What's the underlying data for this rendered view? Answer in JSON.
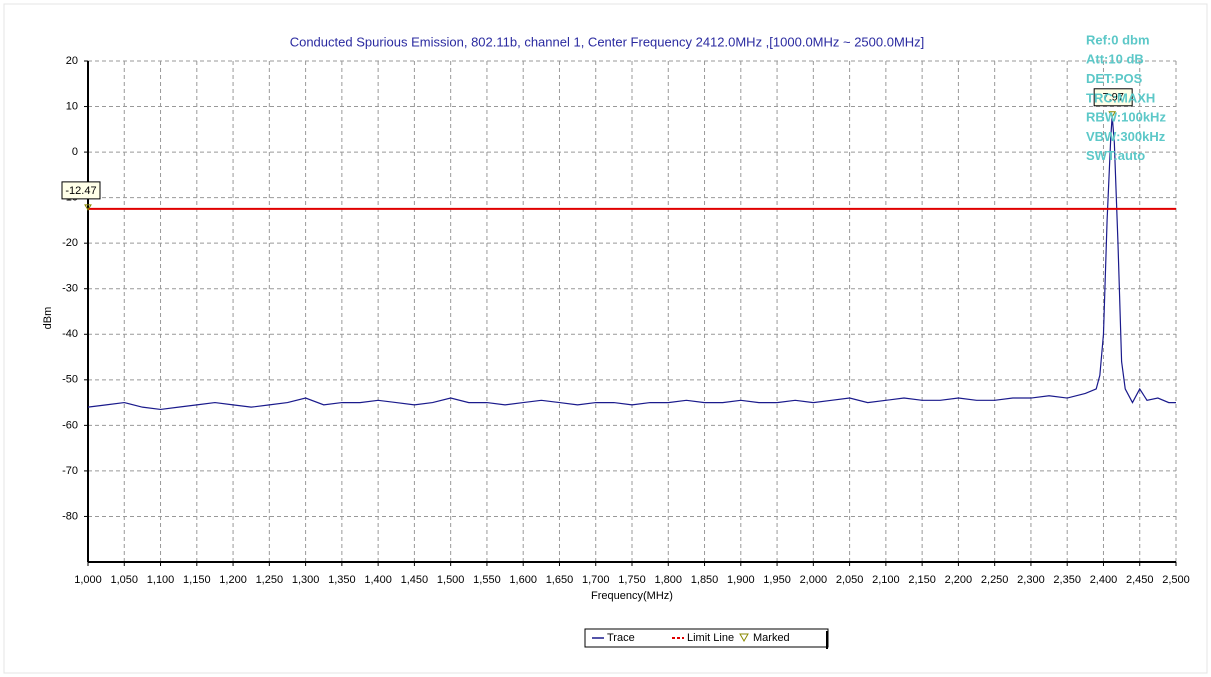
{
  "chart_data": {
    "type": "line",
    "title": "Conducted Spurious Emission, 802.11b, channel 1, Center Frequency 2412.0MHz ,[1000.0MHz ~ 2500.0MHz]",
    "x_label": "Frequency(MHz)",
    "y_label": "dBm",
    "xlim": [
      1000,
      2500
    ],
    "ylim": [
      -90,
      20
    ],
    "yticks": [
      20,
      10,
      0,
      -10,
      -20,
      -30,
      -40,
      -50,
      -60,
      -70,
      -80
    ],
    "xticks": [
      {
        "value": 1000,
        "label": "1,000"
      },
      {
        "value": 1050,
        "label": "1,050"
      },
      {
        "value": 1100,
        "label": "1,100"
      },
      {
        "value": 1150,
        "label": "1,150"
      },
      {
        "value": 1200,
        "label": "1,200"
      },
      {
        "value": 1250,
        "label": "1,250"
      },
      {
        "value": 1300,
        "label": "1,300"
      },
      {
        "value": 1350,
        "label": "1,350"
      },
      {
        "value": 1400,
        "label": "1,400"
      },
      {
        "value": 1450,
        "label": "1,450"
      },
      {
        "value": 1500,
        "label": "1,500"
      },
      {
        "value": 1550,
        "label": "1,550"
      },
      {
        "value": 1600,
        "label": "1,600"
      },
      {
        "value": 1650,
        "label": "1,650"
      },
      {
        "value": 1700,
        "label": "1,700"
      },
      {
        "value": 1750,
        "label": "1,750"
      },
      {
        "value": 1800,
        "label": "1,800"
      },
      {
        "value": 1850,
        "label": "1,850"
      },
      {
        "value": 1900,
        "label": "1,900"
      },
      {
        "value": 1950,
        "label": "1,950"
      },
      {
        "value": 2000,
        "label": "2,000"
      },
      {
        "value": 2050,
        "label": "2,050"
      },
      {
        "value": 2100,
        "label": "2,100"
      },
      {
        "value": 2150,
        "label": "2,150"
      },
      {
        "value": 2200,
        "label": "2,200"
      },
      {
        "value": 2250,
        "label": "2,250"
      },
      {
        "value": 2300,
        "label": "2,300"
      },
      {
        "value": 2350,
        "label": "2,350"
      },
      {
        "value": 2400,
        "label": "2,400"
      },
      {
        "value": 2450,
        "label": "2,450"
      },
      {
        "value": 2500,
        "label": "2,500"
      }
    ],
    "grid": true,
    "x": [
      1000,
      1025,
      1050,
      1075,
      1100,
      1125,
      1150,
      1175,
      1200,
      1225,
      1250,
      1275,
      1300,
      1325,
      1350,
      1375,
      1400,
      1425,
      1450,
      1475,
      1500,
      1525,
      1550,
      1575,
      1600,
      1625,
      1650,
      1675,
      1700,
      1725,
      1750,
      1775,
      1800,
      1825,
      1850,
      1875,
      1900,
      1925,
      1950,
      1975,
      2000,
      2025,
      2050,
      2075,
      2100,
      2125,
      2150,
      2175,
      2200,
      2225,
      2250,
      2275,
      2300,
      2325,
      2350,
      2375,
      2390,
      2395,
      2400,
      2405,
      2410,
      2412,
      2415,
      2420,
      2425,
      2430,
      2440,
      2450,
      2460,
      2475,
      2490,
      2500
    ],
    "series": [
      {
        "name": "Trace",
        "color": "#1a1a8c",
        "values": [
          -56,
          -55.5,
          -55,
          -56,
          -56.5,
          -56,
          -55.5,
          -55,
          -55.5,
          -56,
          -55.5,
          -55,
          -54,
          -55.5,
          -55,
          -55,
          -54.5,
          -55,
          -55.5,
          -55,
          -54,
          -55,
          -55,
          -55.5,
          -55,
          -54.5,
          -55,
          -55.5,
          -55,
          -55,
          -55.5,
          -55,
          -55,
          -54.5,
          -55,
          -55,
          -54.5,
          -55,
          -55,
          -54.5,
          -55,
          -54.5,
          -54,
          -55,
          -54.5,
          -54,
          -54.5,
          -54.5,
          -54,
          -54.5,
          -54.5,
          -54,
          -54,
          -53.5,
          -54,
          -53,
          -52,
          -49,
          -40,
          -15,
          3,
          7.97,
          2,
          -20,
          -46,
          -52,
          -55,
          -52,
          -54.5,
          -54,
          -55,
          -55
        ]
      },
      {
        "name": "Limit Line",
        "color": "#e00000",
        "value": -12.47
      },
      {
        "name": "Marked",
        "color": "#8a8a00"
      }
    ],
    "markers": [
      {
        "x": 1000,
        "value": -12.47
      },
      {
        "x": 2412,
        "value": 7.97
      }
    ],
    "info": [
      "Ref:0 dbm",
      "Att:10 dB",
      "DET:POS",
      "TRC:MAXH",
      "RBW:100kHz",
      "VBW:300kHz",
      "SWT:auto"
    ]
  }
}
